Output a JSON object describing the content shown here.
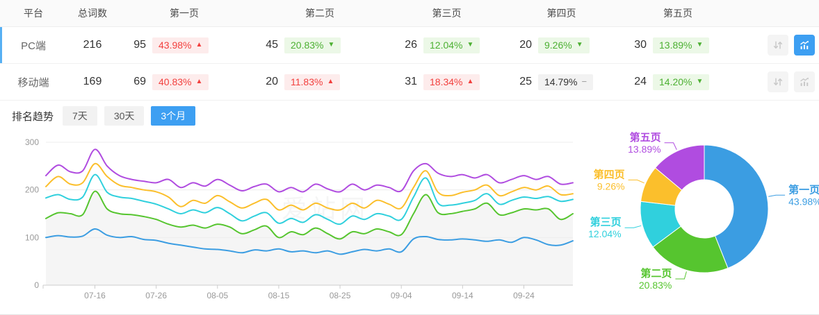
{
  "table": {
    "headers": [
      "平台",
      "总词数",
      "第一页",
      "第二页",
      "第三页",
      "第四页",
      "第五页"
    ],
    "rows": [
      {
        "platform": "PC端",
        "total": "216",
        "selected": true,
        "pages": [
          {
            "count": "95",
            "pct": "43.98%",
            "dir": "up"
          },
          {
            "count": "45",
            "pct": "20.83%",
            "dir": "down"
          },
          {
            "count": "26",
            "pct": "12.04%",
            "dir": "down"
          },
          {
            "count": "20",
            "pct": "9.26%",
            "dir": "down"
          },
          {
            "count": "30",
            "pct": "13.89%",
            "dir": "down"
          }
        ],
        "sort_active": false,
        "chart_active": true
      },
      {
        "platform": "移动端",
        "total": "169",
        "selected": false,
        "pages": [
          {
            "count": "69",
            "pct": "40.83%",
            "dir": "up"
          },
          {
            "count": "20",
            "pct": "11.83%",
            "dir": "up"
          },
          {
            "count": "31",
            "pct": "18.34%",
            "dir": "up"
          },
          {
            "count": "25",
            "pct": "14.79%",
            "dir": "flat"
          },
          {
            "count": "24",
            "pct": "14.20%",
            "dir": "down"
          }
        ],
        "sort_active": false,
        "chart_active": false
      }
    ]
  },
  "trend": {
    "title": "排名趋势",
    "tabs": [
      {
        "label": "7天",
        "active": false
      },
      {
        "label": "30天",
        "active": false
      },
      {
        "label": "3个月",
        "active": true
      }
    ]
  },
  "watermark": "爱站网",
  "colors": {
    "accent_blue": "#3d9ff2",
    "row_accent": "#57b0f3",
    "badge_up_text": "#f2403e",
    "badge_up_bg": "#fdecec",
    "badge_down_text": "#4cb032",
    "badge_down_bg": "#ecf8e7",
    "badge_flat_bg": "#f2f2f2",
    "series": [
      "#3b9de2",
      "#56c52f",
      "#30d0dd",
      "#fbbf2c",
      "#b04ce0"
    ]
  },
  "chart_data": [
    {
      "type": "line",
      "title": "排名趋势 (3个月)",
      "ylim": [
        0,
        300
      ],
      "yticks": [
        0,
        100,
        200,
        300
      ],
      "x_tick_labels": [
        "07-16",
        "07-26",
        "08-05",
        "08-15",
        "08-25",
        "09-04",
        "09-14",
        "09-24"
      ],
      "x_tick_indices": [
        4,
        9,
        14,
        19,
        24,
        29,
        34,
        39
      ],
      "grid": true,
      "legend_position": "none",
      "series": [
        {
          "name": "第一页",
          "color": "#3b9de2",
          "area": false,
          "values": [
            100,
            104,
            101,
            103,
            118,
            105,
            100,
            102,
            96,
            94,
            88,
            84,
            80,
            76,
            75,
            72,
            68,
            74,
            72,
            76,
            70,
            72,
            68,
            72,
            65,
            70,
            75,
            72,
            76,
            70,
            97,
            102,
            96,
            95,
            97,
            95,
            92,
            95,
            90,
            100,
            95,
            85,
            84,
            93
          ]
        },
        {
          "name": "第二页",
          "color": "#56c52f",
          "area": true,
          "values": [
            140,
            152,
            150,
            148,
            197,
            160,
            150,
            148,
            144,
            138,
            128,
            122,
            126,
            120,
            128,
            122,
            108,
            116,
            124,
            100,
            112,
            106,
            120,
            108,
            97,
            112,
            108,
            118,
            112,
            106,
            150,
            190,
            152,
            150,
            155,
            160,
            172,
            148,
            152,
            160,
            158,
            160,
            138,
            150
          ]
        },
        {
          "name": "第三页",
          "color": "#30d0dd",
          "area": false,
          "values": [
            183,
            190,
            180,
            185,
            232,
            195,
            185,
            182,
            176,
            170,
            160,
            150,
            158,
            152,
            163,
            150,
            135,
            145,
            152,
            130,
            140,
            132,
            148,
            138,
            128,
            145,
            138,
            150,
            145,
            138,
            185,
            225,
            172,
            168,
            172,
            178,
            192,
            170,
            178,
            185,
            182,
            186,
            176,
            180
          ]
        },
        {
          "name": "第四页",
          "color": "#fbbf2c",
          "area": false,
          "values": [
            207,
            228,
            212,
            215,
            255,
            228,
            210,
            205,
            200,
            196,
            185,
            165,
            178,
            172,
            188,
            175,
            162,
            172,
            180,
            158,
            168,
            158,
            172,
            162,
            158,
            172,
            162,
            178,
            170,
            162,
            205,
            240,
            195,
            188,
            195,
            200,
            210,
            188,
            196,
            205,
            200,
            208,
            190,
            192
          ]
        },
        {
          "name": "第五页",
          "color": "#b04ce0",
          "area": false,
          "values": [
            230,
            252,
            238,
            240,
            285,
            250,
            230,
            222,
            218,
            215,
            222,
            205,
            215,
            208,
            222,
            210,
            198,
            207,
            212,
            196,
            205,
            196,
            212,
            202,
            196,
            212,
            200,
            210,
            205,
            198,
            240,
            255,
            235,
            228,
            232,
            225,
            232,
            215,
            222,
            230,
            222,
            228,
            212,
            215
          ]
        }
      ]
    },
    {
      "type": "pie",
      "donut": true,
      "labels": [
        "第一页",
        "第二页",
        "第三页",
        "第四页",
        "第五页"
      ],
      "values": [
        43.98,
        20.83,
        12.04,
        9.26,
        13.89
      ],
      "display": [
        "43.98%",
        "20.83%",
        "12.04%",
        "9.26%",
        "13.89%"
      ],
      "colors": [
        "#3b9de2",
        "#56c52f",
        "#30d0dd",
        "#fbbf2c",
        "#b04ce0"
      ],
      "start_angle": "top",
      "direction": "clockwise"
    }
  ]
}
